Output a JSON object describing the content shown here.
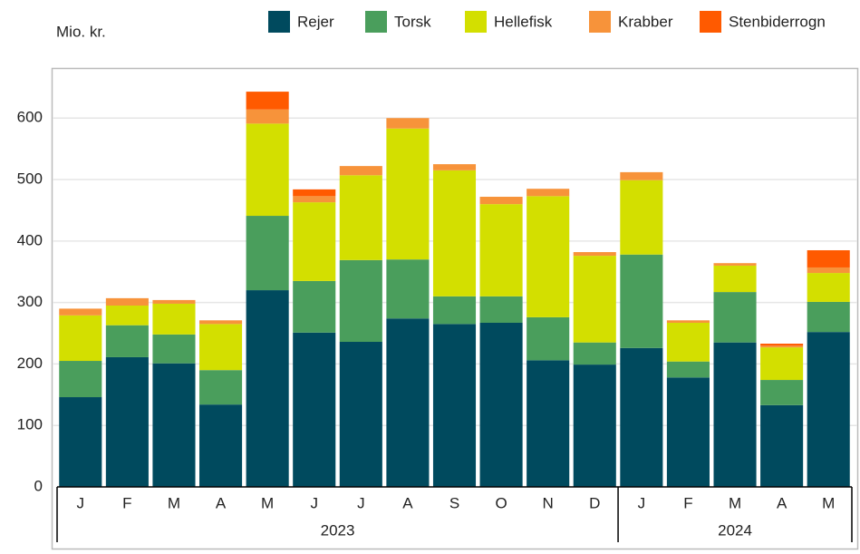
{
  "chart_data": {
    "type": "bar",
    "stacked": true,
    "y_label": "Mio. kr.",
    "groups": [
      {
        "label": "2023",
        "categories": [
          "J",
          "F",
          "M",
          "A",
          "M",
          "J",
          "J",
          "A",
          "S",
          "O",
          "N",
          "D"
        ]
      },
      {
        "label": "2024",
        "categories": [
          "J",
          "F",
          "M",
          "A",
          "M"
        ]
      }
    ],
    "series": [
      {
        "name": "Rejer",
        "color": "#004a5e",
        "values": [
          146,
          211,
          201,
          134,
          320,
          251,
          236,
          274,
          265,
          267,
          206,
          199,
          226,
          178,
          235,
          133,
          252
        ]
      },
      {
        "name": "Torsk",
        "color": "#4a9e5c",
        "values": [
          59,
          52,
          47,
          56,
          121,
          84,
          133,
          96,
          45,
          43,
          70,
          36,
          152,
          26,
          82,
          41,
          49
        ]
      },
      {
        "name": "Hellefisk",
        "color": "#d3df00",
        "values": [
          74,
          32,
          50,
          75,
          150,
          128,
          138,
          213,
          205,
          150,
          197,
          141,
          121,
          63,
          43,
          53,
          47
        ]
      },
      {
        "name": "Krabber",
        "color": "#f7933a",
        "values": [
          11,
          12,
          6,
          6,
          23,
          10,
          15,
          17,
          10,
          12,
          12,
          6,
          13,
          4,
          4,
          3,
          9
        ]
      },
      {
        "name": "Stenbiderrogn",
        "color": "#ff5a00",
        "values": [
          0,
          0,
          0,
          0,
          29,
          11,
          0,
          0,
          0,
          0,
          0,
          0,
          0,
          0,
          0,
          3,
          28
        ]
      }
    ],
    "ylim": [
      0,
      680
    ],
    "yticks": [
      0,
      100,
      200,
      300,
      400,
      500,
      600
    ],
    "grid": true
  }
}
